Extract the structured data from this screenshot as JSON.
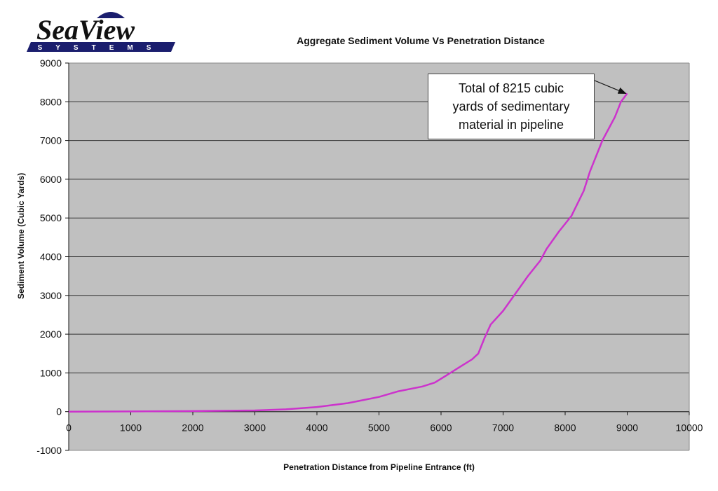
{
  "logo": {
    "name_top": "SeaView",
    "name_bottom": "SYSTEMS",
    "brand_color": "#1b1e6e"
  },
  "chart_data": {
    "type": "line",
    "title": "Aggregate Sediment Volume Vs Penetration Distance",
    "xlabel": "Penetration Distance from Pipeline Entrance (ft)",
    "ylabel": "Sediment Volume (Cubic Yards)",
    "xlim": [
      0,
      10000
    ],
    "ylim": [
      -1000,
      9000
    ],
    "x_ticks": [
      "0",
      "1000",
      "2000",
      "3000",
      "4000",
      "5000",
      "6000",
      "7000",
      "8000",
      "9000",
      "10000"
    ],
    "y_ticks": [
      "9000",
      "8000",
      "7000",
      "6000",
      "5000",
      "4000",
      "3000",
      "2000",
      "1000",
      "0",
      "-1000"
    ],
    "grid": "horizontal",
    "legend": "none",
    "plot_background": "#c0c0c0",
    "series": [
      {
        "name": "Aggregate Sediment Volume",
        "color": "#cc33cc",
        "x": [
          0,
          1000,
          2000,
          3000,
          3500,
          4000,
          4500,
          5000,
          5300,
          5700,
          5900,
          6100,
          6300,
          6500,
          6600,
          6700,
          6800,
          7000,
          7200,
          7400,
          7600,
          7700,
          7900,
          8100,
          8300,
          8400,
          8600,
          8800,
          8900,
          9000
        ],
        "y": [
          0,
          5,
          15,
          30,
          60,
          120,
          220,
          380,
          520,
          650,
          750,
          950,
          1150,
          1350,
          1500,
          1900,
          2250,
          2600,
          3050,
          3500,
          3900,
          4200,
          4650,
          5050,
          5700,
          6200,
          7000,
          7600,
          8000,
          8215
        ]
      }
    ],
    "annotations": [
      {
        "text": "Total of 8215 cubic yards of sedimentary material in pipeline",
        "lines": [
          "Total of 8215 cubic",
          "yards of sedimentary",
          "material in pipeline"
        ],
        "points_to": [
          9000,
          8215
        ]
      }
    ]
  }
}
